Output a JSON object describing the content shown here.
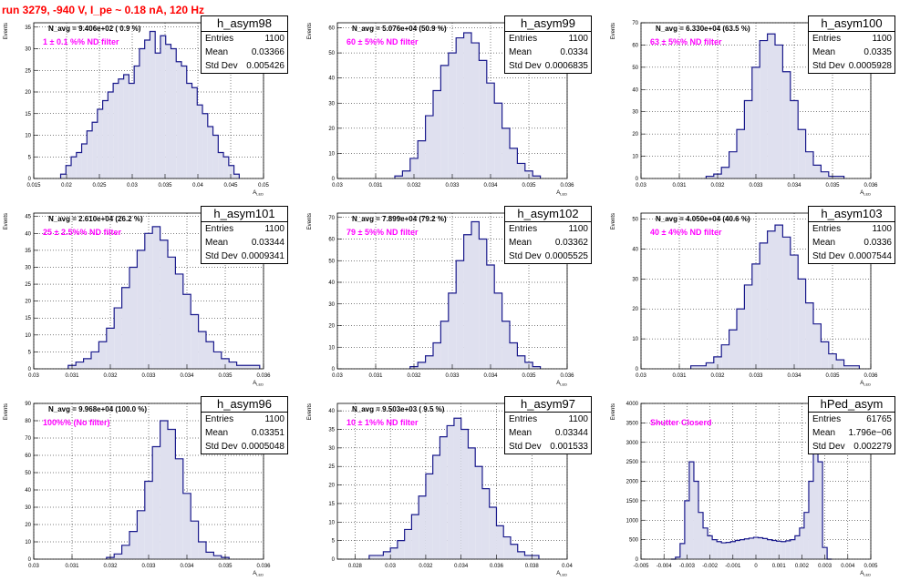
{
  "header": {
    "title": "run 3279,  -940 V, I_pe ~ 0.18 nA, 120 Hz"
  },
  "colors": {
    "line": "#1a1a8c",
    "fill": "#dfe0ef",
    "annotation": "#ff00ff",
    "title": "#ff0000"
  },
  "chart_data": [
    {
      "type": "histogram",
      "name": "h_asym98",
      "xlabel": "A_LED",
      "ylabel": "Events",
      "xlim": [
        0.015,
        0.05
      ],
      "ylim": [
        0,
        36
      ],
      "xticks": [
        "0.015",
        "0.02",
        "0.025",
        "0.03",
        "0.035",
        "0.04",
        "0.045",
        "0.05"
      ],
      "yticks": [
        "0",
        "5",
        "10",
        "15",
        "20",
        "25",
        "30",
        "35"
      ],
      "navg": "N_avg = 9.406e+02 ( 0.9 %)",
      "annotation": "1 ± 0.1 %% ND filter",
      "stats": {
        "entries": "1100",
        "mean": "0.03366",
        "std_dev": "0.005426"
      },
      "x": [
        0.0195,
        0.0203,
        0.0211,
        0.0219,
        0.0227,
        0.0235,
        0.0243,
        0.0251,
        0.0259,
        0.0267,
        0.0275,
        0.0283,
        0.0291,
        0.0299,
        0.0307,
        0.0315,
        0.0323,
        0.0331,
        0.0339,
        0.0347,
        0.0355,
        0.0363,
        0.0371,
        0.0379,
        0.0387,
        0.0395,
        0.0403,
        0.0411,
        0.0419,
        0.0427,
        0.0435,
        0.0443,
        0.0451,
        0.0459
      ],
      "values": [
        1,
        3,
        5,
        6,
        8,
        11,
        13,
        16,
        18,
        20,
        22,
        23,
        24,
        22,
        26,
        30,
        32,
        34,
        29,
        33,
        31,
        30,
        27,
        26,
        22,
        21,
        17,
        15,
        12,
        10,
        6,
        5,
        3,
        1
      ]
    },
    {
      "type": "histogram",
      "name": "h_asym99",
      "xlabel": "A_LED",
      "ylabel": "Events",
      "xlim": [
        0.03,
        0.036
      ],
      "ylim": [
        0,
        62
      ],
      "xticks": [
        "0.03",
        "0.031",
        "0.032",
        "0.033",
        "0.034",
        "0.035",
        "0.036",
        "0.037",
        "0.038"
      ],
      "yticks": [
        "0",
        "10",
        "20",
        "30",
        "40",
        "50",
        "60"
      ],
      "navg": "N_avg = 5.076e+04 (50.9 %)",
      "annotation": "60 ± 5%% ND filter",
      "stats": {
        "entries": "1100",
        "mean": "0.0334",
        "std_dev": "0.0006835"
      },
      "x": [
        0.0316,
        0.0318,
        0.032,
        0.0322,
        0.0324,
        0.0326,
        0.0328,
        0.033,
        0.0332,
        0.0334,
        0.0336,
        0.0338,
        0.034,
        0.0342,
        0.0344,
        0.0346,
        0.0348,
        0.035,
        0.0352
      ],
      "values": [
        1,
        3,
        8,
        15,
        25,
        35,
        45,
        50,
        56,
        58,
        54,
        47,
        38,
        30,
        20,
        12,
        6,
        3,
        1
      ]
    },
    {
      "type": "histogram",
      "name": "h_asym100",
      "xlabel": "A_LED",
      "ylabel": "Events",
      "xlim": [
        0.03,
        0.036
      ],
      "ylim": [
        0,
        70
      ],
      "xticks": [
        "0.03",
        "0.031",
        "0.032",
        "0.033",
        "0.034",
        "0.035",
        "0.036",
        "0.037",
        "0.038"
      ],
      "yticks": [
        "0",
        "10",
        "20",
        "30",
        "40",
        "50",
        "60",
        "70"
      ],
      "navg": "N_avg = 6.330e+04 (63.5 %)",
      "annotation": "63 ± 5%% ND filter",
      "stats": {
        "entries": "1100",
        "mean": "0.0335",
        "std_dev": "0.0005928"
      },
      "x": [
        0.0318,
        0.032,
        0.0322,
        0.0324,
        0.0326,
        0.0328,
        0.033,
        0.0332,
        0.0334,
        0.0336,
        0.0338,
        0.034,
        0.0342,
        0.0344,
        0.0346,
        0.0348,
        0.035,
        0.0352
      ],
      "values": [
        1,
        2,
        5,
        12,
        22,
        35,
        50,
        62,
        65,
        60,
        48,
        35,
        22,
        12,
        6,
        3,
        1,
        1
      ]
    },
    {
      "type": "histogram",
      "name": "h_asym101",
      "xlabel": "A_LED",
      "ylabel": "Events",
      "xlim": [
        0.03,
        0.036
      ],
      "ylim": [
        0,
        46
      ],
      "xticks": [
        "0.03",
        "0.031",
        "0.032",
        "0.033",
        "0.034",
        "0.035",
        "0.036",
        "0.037",
        "0.038"
      ],
      "yticks": [
        "0",
        "5",
        "10",
        "15",
        "20",
        "25",
        "30",
        "35",
        "40",
        "45"
      ],
      "navg": "N_avg = 2.610e+04 (26.2 %)",
      "annotation": "25 ± 2.5%% ND filter",
      "stats": {
        "entries": "1100",
        "mean": "0.03344",
        "std_dev": "0.0009341"
      },
      "x": [
        0.031,
        0.0312,
        0.0314,
        0.0316,
        0.0318,
        0.032,
        0.0322,
        0.0324,
        0.0326,
        0.0328,
        0.033,
        0.0332,
        0.0334,
        0.0336,
        0.0338,
        0.034,
        0.0342,
        0.0344,
        0.0346,
        0.0348,
        0.035,
        0.0352,
        0.0354,
        0.0356,
        0.0358
      ],
      "values": [
        1,
        2,
        3,
        5,
        8,
        12,
        18,
        24,
        30,
        35,
        40,
        42,
        38,
        33,
        28,
        22,
        16,
        11,
        8,
        5,
        3,
        2,
        1,
        1,
        1
      ]
    },
    {
      "type": "histogram",
      "name": "h_asym102",
      "xlabel": "A_LED",
      "ylabel": "Events",
      "xlim": [
        0.03,
        0.036
      ],
      "ylim": [
        0,
        72
      ],
      "xticks": [
        "0.03",
        "0.031",
        "0.032",
        "0.033",
        "0.034",
        "0.035",
        "0.036",
        "0.037",
        "0.038"
      ],
      "yticks": [
        "0",
        "10",
        "20",
        "30",
        "40",
        "50",
        "60",
        "70"
      ],
      "navg": "N_avg = 7.899e+04 (79.2 %)",
      "annotation": "79 ± 5%% ND filter",
      "stats": {
        "entries": "1100",
        "mean": "0.03362",
        "std_dev": "0.0005525"
      },
      "x": [
        0.032,
        0.0322,
        0.0324,
        0.0326,
        0.0328,
        0.033,
        0.0332,
        0.0334,
        0.0336,
        0.0338,
        0.034,
        0.0342,
        0.0344,
        0.0346,
        0.0348,
        0.035,
        0.0352
      ],
      "values": [
        1,
        3,
        6,
        12,
        22,
        35,
        50,
        62,
        68,
        60,
        48,
        35,
        22,
        12,
        6,
        3,
        1
      ]
    },
    {
      "type": "histogram",
      "name": "h_asym103",
      "xlabel": "A_LED",
      "ylabel": "Events",
      "xlim": [
        0.03,
        0.036
      ],
      "ylim": [
        0,
        52
      ],
      "xticks": [
        "0.03",
        "0.031",
        "0.032",
        "0.033",
        "0.034",
        "0.035",
        "0.036",
        "0.037",
        "0.038"
      ],
      "yticks": [
        "0",
        "10",
        "20",
        "30",
        "40",
        "50"
      ],
      "navg": "N_avg = 4.050e+04 (40.6 %)",
      "annotation": "40 ± 4%% ND filter",
      "stats": {
        "entries": "1100",
        "mean": "0.0336",
        "std_dev": "0.0007544"
      },
      "x": [
        0.0314,
        0.0316,
        0.0318,
        0.032,
        0.0322,
        0.0324,
        0.0326,
        0.0328,
        0.033,
        0.0332,
        0.0334,
        0.0336,
        0.0338,
        0.034,
        0.0342,
        0.0344,
        0.0346,
        0.0348,
        0.035,
        0.0352,
        0.0354,
        0.0356
      ],
      "values": [
        1,
        1,
        2,
        4,
        8,
        13,
        20,
        28,
        35,
        42,
        46,
        48,
        44,
        38,
        30,
        22,
        15,
        9,
        5,
        3,
        1,
        1
      ]
    },
    {
      "type": "histogram",
      "name": "h_asym96",
      "xlabel": "A_LED",
      "ylabel": "Events",
      "xlim": [
        0.03,
        0.036
      ],
      "ylim": [
        0,
        90
      ],
      "xticks": [
        "0.03",
        "0.031",
        "0.032",
        "0.033",
        "0.034",
        "0.035",
        "0.036",
        "0.037",
        "0.038"
      ],
      "yticks": [
        "0",
        "10",
        "20",
        "30",
        "40",
        "50",
        "60",
        "70",
        "80",
        "90"
      ],
      "navg": "N_avg = 9.968e+04 (100.0 %)",
      "annotation": "100%% (No filter)",
      "stats": {
        "entries": "1100",
        "mean": "0.03351",
        "std_dev": "0.0005048"
      },
      "x": [
        0.032,
        0.0322,
        0.0324,
        0.0326,
        0.0328,
        0.033,
        0.0332,
        0.0334,
        0.0336,
        0.0338,
        0.034,
        0.0342,
        0.0344,
        0.0346,
        0.0348,
        0.035
      ],
      "values": [
        1,
        3,
        8,
        16,
        28,
        45,
        65,
        80,
        75,
        58,
        38,
        22,
        10,
        4,
        2,
        1
      ]
    },
    {
      "type": "histogram",
      "name": "h_asym97",
      "xlabel": "A_LED",
      "ylabel": "Events",
      "xlim": [
        0.027,
        0.04
      ],
      "ylim": [
        0,
        42
      ],
      "xticks": [
        "0.028",
        "0.03",
        "0.032",
        "0.034",
        "0.036",
        "0.038",
        "0.04"
      ],
      "yticks": [
        "0",
        "5",
        "10",
        "15",
        "20",
        "25",
        "30",
        "35",
        "40"
      ],
      "navg": "N_avg = 9.503e+03 ( 9.5 %)",
      "annotation": "10 ± 1%% ND filter",
      "stats": {
        "entries": "1100",
        "mean": "0.03344",
        "std_dev": "0.001533"
      },
      "x": [
        0.029,
        0.0294,
        0.0298,
        0.0302,
        0.0306,
        0.031,
        0.0314,
        0.0318,
        0.0322,
        0.0326,
        0.033,
        0.0334,
        0.0338,
        0.0342,
        0.0346,
        0.035,
        0.0354,
        0.0358,
        0.0362,
        0.0366,
        0.037,
        0.0374,
        0.0378,
        0.0382
      ],
      "values": [
        1,
        1,
        2,
        3,
        5,
        8,
        12,
        17,
        23,
        28,
        33,
        36,
        38,
        35,
        30,
        25,
        19,
        14,
        9,
        6,
        4,
        2,
        1,
        1
      ]
    },
    {
      "type": "histogram",
      "name": "hPed_asym",
      "xlabel": "A_LED",
      "ylabel": "Events",
      "xlim": [
        -0.005,
        0.005
      ],
      "ylim": [
        0,
        4000
      ],
      "xticks": [
        "-0.005",
        "-0.004",
        "-0.003",
        "-0.002",
        "-0.001",
        "0",
        "0.001",
        "0.002",
        "0.003",
        "0.004",
        "0.005"
      ],
      "yticks": [
        "0",
        "500",
        "1000",
        "1500",
        "2000",
        "2500",
        "3000",
        "3500",
        "4000"
      ],
      "navg": "",
      "annotation": "Shutter Closerd",
      "stats": {
        "entries": "61765",
        "mean": "1.796e−06",
        "std_dev": "0.002279"
      },
      "x": [
        -0.0036,
        -0.0034,
        -0.0032,
        -0.003,
        -0.0028,
        -0.0026,
        -0.0024,
        -0.0022,
        -0.002,
        -0.0018,
        -0.0016,
        -0.0014,
        -0.0012,
        -0.001,
        -0.0008,
        -0.0006,
        -0.0004,
        -0.0002,
        0.0,
        0.0002,
        0.0004,
        0.0006,
        0.0008,
        0.001,
        0.0012,
        0.0014,
        0.0016,
        0.0018,
        0.002,
        0.0022,
        0.0024,
        0.0026,
        0.0028,
        0.003,
        0.0032
      ],
      "values": [
        0,
        50,
        400,
        1500,
        2500,
        2000,
        1200,
        800,
        600,
        500,
        450,
        420,
        430,
        450,
        480,
        500,
        520,
        540,
        560,
        550,
        530,
        500,
        480,
        460,
        450,
        470,
        500,
        600,
        800,
        1200,
        2000,
        3800,
        2500,
        300,
        0
      ]
    }
  ]
}
